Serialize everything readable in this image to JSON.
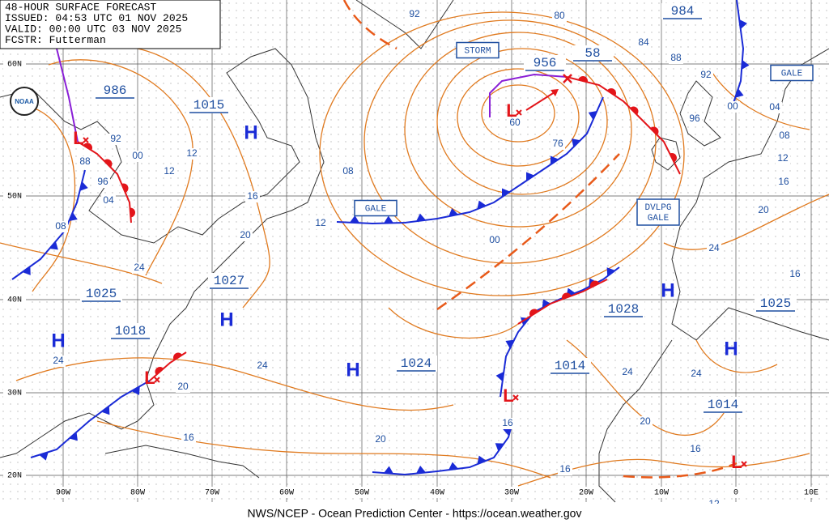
{
  "header_lines": [
    "48-HOUR SURFACE FORECAST",
    "ISSUED: 04:53 UTC 01 NOV 2025",
    "VALID:  00:00 UTC 03 NOV 2025",
    "FCSTR:  Futterman"
  ],
  "logo": "NOAA",
  "lat_labels": [
    "60N",
    "50N",
    "40N",
    "30N",
    "20N"
  ],
  "lon_labels": [
    "90W",
    "80W",
    "70W",
    "60W",
    "50W",
    "40W",
    "30W",
    "20W",
    "10W",
    "0",
    "10E"
  ],
  "pressure_boxes": [
    "986",
    "1015",
    "1025",
    "1027",
    "1018",
    "1024",
    "1014",
    "1028",
    "1025",
    "1014",
    "956",
    "58",
    "984"
  ],
  "warning_labels": [
    [
      "STORM"
    ],
    [
      "GALE"
    ],
    [
      "DVLPG",
      "GALE"
    ],
    [
      "GALE"
    ]
  ],
  "highs": [
    "H",
    "H",
    "H",
    "H",
    "H",
    "H"
  ],
  "lows": [
    "L",
    "L",
    "L",
    "L",
    "L"
  ],
  "isobar_labels": [
    "92",
    "00",
    "88",
    "96",
    "04",
    "12",
    "12",
    "08",
    "16",
    "20",
    "24",
    "24",
    "24",
    "20",
    "16",
    "20",
    "08",
    "12",
    "00",
    "80",
    "84",
    "88",
    "92",
    "96",
    "00",
    "04",
    "08",
    "12",
    "16",
    "20",
    "24",
    "16",
    "24",
    "24",
    "20",
    "16",
    "16",
    "12",
    "92",
    "60",
    "76",
    "16"
  ],
  "footer": "NWS/NCEP - Ocean Prediction Center - https://ocean.weather.gov"
}
